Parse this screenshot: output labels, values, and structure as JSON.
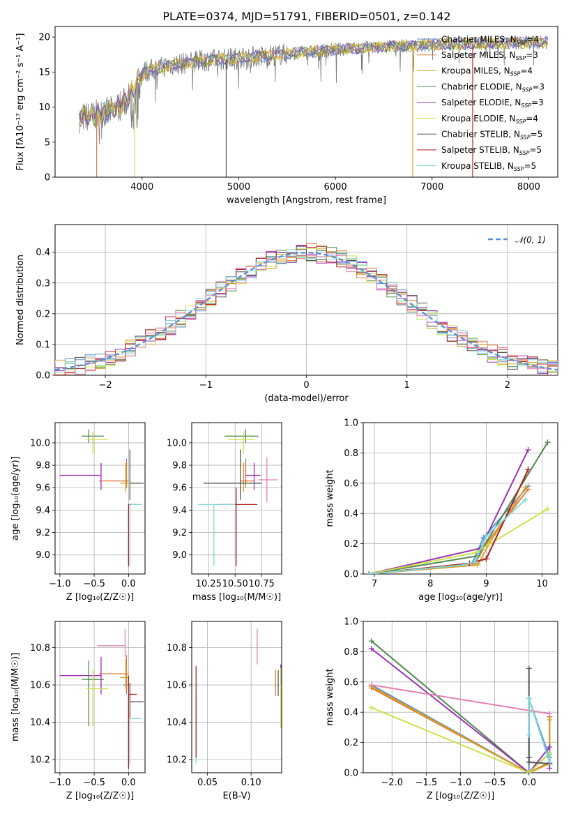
{
  "figure": {
    "title": "PLATE=0374, MJD=51791, FIBERID=0501, z=0.142"
  },
  "colors": {
    "chabrier_miles": "#5b8fd6",
    "salpeter_miles": "#e17b3a",
    "kroupa_miles": "#d6a020",
    "chabrier_elodie": "#4f8a4f",
    "salpeter_elodie": "#9a32b0",
    "kroupa_elodie": "#cbe24a",
    "chabrier_stelib": "#555555",
    "salpeter_stelib": "#b22222",
    "kroupa_stelib": "#7fd8d8",
    "pink": "#e57fb5",
    "grid": "#b0b0b0",
    "gauss": "#5b8fd6"
  },
  "chart_data": [
    {
      "id": "spectrum",
      "type": "line",
      "title": "PLATE=0374, MJD=51791, FIBERID=0501, z=0.142",
      "xlabel": "wavelength [Angstrom, rest frame]",
      "ylabel": "Flux [fλ10⁻¹⁷ erg cm⁻² s⁻¹ A⁻¹]",
      "xlim": [
        3100,
        8300
      ],
      "ylim": [
        0,
        21.5
      ],
      "xticks": [
        4000,
        5000,
        6000,
        7000,
        8000
      ],
      "yticks": [
        0,
        5,
        10,
        15,
        20
      ],
      "grid": false,
      "legend_position": "top-right",
      "legend": [
        "Chabrier MILES, N_SSP=4",
        "Salpeter MILES, N_SSP=3",
        "Kroupa MILES, N_SSP=4",
        "Chabrier ELODIE, N_SSP=3",
        "Salpeter ELODIE, N_SSP=3",
        "Kroupa ELODIE, N_SSP=4",
        "Chabrier STELIB, N_SSP=5",
        "Salpeter STELIB, N_SSP=5",
        "Kroupa STELIB, N_SSP=5"
      ],
      "continuum": [
        [
          3350,
          8.4
        ],
        [
          3500,
          8.8
        ],
        [
          3700,
          9.5
        ],
        [
          3850,
          11.0
        ],
        [
          4000,
          15.0
        ],
        [
          4300,
          16.0
        ],
        [
          4600,
          16.6
        ],
        [
          5000,
          17.0
        ],
        [
          5500,
          17.6
        ],
        [
          6000,
          18.2
        ],
        [
          6500,
          18.6
        ],
        [
          7000,
          18.9
        ],
        [
          7500,
          19.1
        ],
        [
          8000,
          19.2
        ],
        [
          8200,
          19.3
        ]
      ],
      "drop_lines": [
        {
          "x": 3530,
          "color_key": "salpeter_miles"
        },
        {
          "x": 3920,
          "color_key": "kroupa_elodie"
        },
        {
          "x": 4870,
          "color_key": "chabrier_stelib"
        },
        {
          "x": 6800,
          "color_key": "kroupa_miles"
        },
        {
          "x": 7420,
          "color_key": "salpeter_stelib"
        }
      ]
    },
    {
      "id": "residuals",
      "type": "step",
      "xlabel": "(data-model)/error",
      "ylabel": "Normed distribution",
      "xlim": [
        -2.5,
        2.5
      ],
      "ylim": [
        0,
        0.49
      ],
      "xticks": [
        -2,
        -1,
        0,
        1,
        2
      ],
      "yticks": [
        0.0,
        0.1,
        0.2,
        0.3,
        0.4
      ],
      "grid": true,
      "legend": [
        "𝒩(0, 1)"
      ],
      "legend_position": "top-right",
      "bin_width": 0.1
    },
    {
      "id": "age_vs_Z",
      "type": "errorbar",
      "xlabel": "Z [log₁₀(Z/Z☉)]",
      "ylabel": "age  [log₁₀(age/yr)]",
      "xlim": [
        -1.07,
        0.24
      ],
      "ylim": [
        8.83,
        10.18
      ],
      "xticks": [
        -1.0,
        -0.5,
        0.0
      ],
      "yticks": [
        9.0,
        9.2,
        9.4,
        9.6,
        9.8,
        10.0
      ],
      "grid": true,
      "points": [
        {
          "c": "chabrier_miles",
          "x": -0.03,
          "xerr": [
            0.05,
            0.03
          ],
          "y": 9.66,
          "yerr": [
            0.06,
            0.2
          ]
        },
        {
          "c": "salpeter_miles",
          "x": -0.03,
          "xerr": [
            0.4,
            0.03
          ],
          "y": 9.66,
          "yerr": [
            0.06,
            0.18
          ]
        },
        {
          "c": "kroupa_miles",
          "x": -0.04,
          "xerr": [
            0.08,
            0.04
          ],
          "y": 9.64,
          "yerr": [
            0.08,
            0.18
          ]
        },
        {
          "c": "chabrier_elodie",
          "x": -0.58,
          "xerr": [
            0.1,
            0.22
          ],
          "y": 10.06,
          "yerr": [
            0.06,
            0.06
          ]
        },
        {
          "c": "salpeter_elodie",
          "x": -0.4,
          "xerr": [
            0.6,
            0.0
          ],
          "y": 9.71,
          "yerr": [
            0.13,
            0.11
          ]
        },
        {
          "c": "kroupa_elodie",
          "x": -0.52,
          "xerr": [
            0.09,
            0.22
          ],
          "y": 10.03,
          "yerr": [
            0.13,
            0.07
          ]
        },
        {
          "c": "chabrier_stelib",
          "x": 0.02,
          "xerr": [
            0.0,
            0.2
          ],
          "y": 9.64,
          "yerr": [
            0.15,
            0.3
          ]
        },
        {
          "c": "salpeter_stelib",
          "x": 0.0,
          "xerr": [
            0.0,
            0.12
          ],
          "y": 9.45,
          "yerr": [
            0.55,
            0.0
          ]
        },
        {
          "c": "kroupa_stelib",
          "x": 0.02,
          "xerr": [
            0.0,
            0.18
          ],
          "y": 9.45,
          "yerr": [
            0.55,
            0.0
          ]
        }
      ]
    },
    {
      "id": "age_vs_mass",
      "type": "errorbar",
      "xlabel": "mass [log₁₀(M/M☉)]",
      "ylabel": "",
      "xlim": [
        10.09,
        10.94
      ],
      "ylim": [
        8.83,
        10.18
      ],
      "xticks": [
        10.25,
        10.5,
        10.75
      ],
      "yticks": [
        9.0,
        9.2,
        9.4,
        9.6,
        9.8,
        10.0
      ],
      "grid": true,
      "points": [
        {
          "c": "chabrier_miles",
          "x": 10.6,
          "xerr": [
            0.04,
            0.02
          ],
          "y": 9.66,
          "yerr": [
            0.06,
            0.2
          ]
        },
        {
          "c": "salpeter_miles",
          "x": 10.6,
          "xerr": [
            0.05,
            0.08
          ],
          "y": 9.66,
          "yerr": [
            0.06,
            0.18
          ]
        },
        {
          "c": "kroupa_miles",
          "x": 10.58,
          "xerr": [
            0.05,
            0.08
          ],
          "y": 9.64,
          "yerr": [
            0.08,
            0.18
          ]
        },
        {
          "c": "chabrier_elodie",
          "x": 10.6,
          "xerr": [
            0.2,
            0.12
          ],
          "y": 10.06,
          "yerr": [
            0.06,
            0.06
          ]
        },
        {
          "c": "salpeter_elodie",
          "x": 10.68,
          "xerr": [
            0.08,
            0.06
          ],
          "y": 9.71,
          "yerr": [
            0.13,
            0.11
          ]
        },
        {
          "c": "kroupa_elodie",
          "x": 10.58,
          "xerr": [
            0.15,
            0.1
          ],
          "y": 10.03,
          "yerr": [
            0.13,
            0.07
          ]
        },
        {
          "c": "chabrier_stelib",
          "x": 10.55,
          "xerr": [
            0.35,
            0.2
          ],
          "y": 9.64,
          "yerr": [
            0.15,
            0.3
          ]
        },
        {
          "c": "salpeter_stelib",
          "x": 10.51,
          "xerr": [
            0.15,
            0.2
          ],
          "y": 9.45,
          "yerr": [
            0.55,
            0.15
          ]
        },
        {
          "c": "kroupa_stelib",
          "x": 10.3,
          "xerr": [
            0.15,
            0.2
          ],
          "y": 9.45,
          "yerr": [
            0.55,
            0.0
          ]
        },
        {
          "c": "pink",
          "x": 10.8,
          "xerr": [
            0.08,
            0.1
          ],
          "y": 9.67,
          "yerr": [
            0.2,
            0.2
          ]
        }
      ]
    },
    {
      "id": "mass_weight_vs_age",
      "type": "line",
      "xlabel": "age  [log₁₀(age/yr)]",
      "ylabel": "mass weight",
      "xlim": [
        6.8,
        10.28
      ],
      "ylim": [
        0.0,
        1.0
      ],
      "xticks": [
        7,
        8,
        9,
        10
      ],
      "yticks": [
        0.0,
        0.2,
        0.4,
        0.6,
        0.8,
        1.0
      ],
      "grid": true,
      "series": [
        {
          "c": "chabrier_miles",
          "x": [
            6.9,
            8.75,
            8.95,
            9.75
          ],
          "y": [
            0.0,
            0.07,
            0.24,
            0.58
          ]
        },
        {
          "c": "salpeter_miles",
          "x": [
            6.9,
            8.8,
            9.0,
            9.75
          ],
          "y": [
            0.0,
            0.07,
            0.2,
            0.56
          ]
        },
        {
          "c": "kroupa_miles",
          "x": [
            6.9,
            8.85,
            9.05,
            9.7
          ],
          "y": [
            0.0,
            0.06,
            0.2,
            0.57
          ]
        },
        {
          "c": "chabrier_elodie",
          "x": [
            6.9,
            8.85,
            10.1
          ],
          "y": [
            0.0,
            0.12,
            0.87
          ]
        },
        {
          "c": "salpeter_elodie",
          "x": [
            6.9,
            8.9,
            9.75
          ],
          "y": [
            0.0,
            0.17,
            0.82
          ]
        },
        {
          "c": "kroupa_elodie",
          "x": [
            6.9,
            8.8,
            10.1
          ],
          "y": [
            0.0,
            0.14,
            0.43
          ]
        },
        {
          "c": "chabrier_stelib",
          "x": [
            6.9,
            8.7,
            9.0,
            9.75
          ],
          "y": [
            0.0,
            0.07,
            0.1,
            0.69
          ]
        },
        {
          "c": "salpeter_stelib",
          "x": [
            6.9,
            8.7,
            9.0,
            9.75
          ],
          "y": [
            0.0,
            0.07,
            0.1,
            0.69
          ]
        },
        {
          "c": "kroupa_stelib",
          "x": [
            6.9,
            8.6,
            8.8,
            9.0,
            9.7
          ],
          "y": [
            0.0,
            0.06,
            0.08,
            0.25,
            0.49
          ]
        }
      ]
    },
    {
      "id": "mass_vs_Z",
      "type": "errorbar",
      "xlabel": "Z [log₁₀(Z/Z☉)]",
      "ylabel": "mass [log₁₀(M/M☉)]",
      "xlim": [
        -1.07,
        0.24
      ],
      "ylim": [
        10.13,
        10.94
      ],
      "xticks": [
        -1.0,
        -0.5,
        0.0
      ],
      "yticks": [
        10.2,
        10.4,
        10.6,
        10.8
      ],
      "grid": true,
      "points": [
        {
          "c": "chabrier_miles",
          "x": -0.03,
          "xerr": [
            0.05,
            0.03
          ],
          "y": 10.6,
          "yerr": [
            0.05,
            0.1
          ]
        },
        {
          "c": "salpeter_miles",
          "x": -0.03,
          "xerr": [
            0.4,
            0.03
          ],
          "y": 10.66,
          "yerr": [
            0.1,
            0.1
          ]
        },
        {
          "c": "kroupa_miles",
          "x": -0.04,
          "xerr": [
            0.08,
            0.04
          ],
          "y": 10.64,
          "yerr": [
            0.06,
            0.1
          ]
        },
        {
          "c": "chabrier_elodie",
          "x": -0.58,
          "xerr": [
            0.1,
            0.22
          ],
          "y": 10.63,
          "yerr": [
            0.25,
            0.1
          ]
        },
        {
          "c": "salpeter_elodie",
          "x": -0.4,
          "xerr": [
            0.6,
            0.0
          ],
          "y": 10.65,
          "yerr": [
            0.1,
            0.1
          ]
        },
        {
          "c": "kroupa_elodie",
          "x": -0.52,
          "xerr": [
            0.09,
            0.22
          ],
          "y": 10.58,
          "yerr": [
            0.2,
            0.1
          ]
        },
        {
          "c": "chabrier_stelib",
          "x": 0.02,
          "xerr": [
            0.0,
            0.2
          ],
          "y": 10.51,
          "yerr": [
            0.33,
            0.1
          ]
        },
        {
          "c": "salpeter_stelib",
          "x": 0.0,
          "xerr": [
            0.0,
            0.12
          ],
          "y": 10.55,
          "yerr": [
            0.4,
            0.1
          ]
        },
        {
          "c": "kroupa_stelib",
          "x": 0.02,
          "xerr": [
            0.0,
            0.18
          ],
          "y": 10.42,
          "yerr": [
            0.25,
            0.0
          ]
        },
        {
          "c": "pink",
          "x": -0.05,
          "xerr": [
            0.4,
            0.0
          ],
          "y": 10.81,
          "yerr": [
            0.06,
            0.09
          ]
        }
      ]
    },
    {
      "id": "mass_vs_ebv",
      "type": "errorbar",
      "xlabel": "E(B-V)",
      "ylabel": "",
      "xlim": [
        0.032,
        0.135
      ],
      "ylim": [
        10.13,
        10.94
      ],
      "xticks": [
        0.05,
        0.1
      ],
      "yticks": [
        10.2,
        10.4,
        10.6,
        10.8
      ],
      "grid": true,
      "points": [
        {
          "c": "kroupa_stelib",
          "x": 0.037,
          "y": 10.36,
          "yerr": [
            0.18,
            0.18
          ]
        },
        {
          "c": "salpeter_stelib",
          "x": 0.037,
          "y": 10.56,
          "yerr": [
            0.35,
            0.14
          ]
        },
        {
          "c": "pink",
          "x": 0.107,
          "y": 10.81,
          "yerr": [
            0.1,
            0.09
          ]
        },
        {
          "c": "salpeter_miles",
          "x": 0.128,
          "y": 10.6,
          "yerr": [
            0.06,
            0.08
          ]
        },
        {
          "c": "chabrier_stelib",
          "x": 0.131,
          "y": 10.6,
          "yerr": [
            0.06,
            0.08
          ]
        },
        {
          "c": "salpeter_elodie",
          "x": 0.134,
          "y": 10.66,
          "yerr": [
            0.06,
            0.05
          ]
        },
        {
          "c": "kroupa_elodie",
          "x": 0.134,
          "y": 10.55,
          "yerr": [
            0.18,
            0.14
          ]
        }
      ]
    },
    {
      "id": "mass_weight_vs_Z",
      "type": "line",
      "xlabel": "Z [log₁₀(Z/Z☉)]",
      "ylabel": "mass weight",
      "xlim": [
        -2.42,
        0.42
      ],
      "ylim": [
        0.0,
        1.0
      ],
      "xticks": [
        -2.0,
        -1.5,
        -1.0,
        -0.5,
        0.0
      ],
      "yticks": [
        0.0,
        0.2,
        0.4,
        0.6,
        0.8,
        1.0
      ],
      "grid": true,
      "series": [
        {
          "c": "chabrier_miles",
          "x": [
            -2.3,
            0.0,
            0.0,
            0.3,
            0.3
          ],
          "y": [
            0.58,
            0.0,
            0.49,
            0.1,
            0.37
          ]
        },
        {
          "c": "salpeter_miles",
          "x": [
            -2.3,
            0.0,
            0.3,
            0.3
          ],
          "y": [
            0.56,
            0.0,
            0.07,
            0.37
          ]
        },
        {
          "c": "kroupa_miles",
          "x": [
            -2.3,
            0.0,
            0.3,
            0.3
          ],
          "y": [
            0.57,
            0.0,
            0.06,
            0.35
          ]
        },
        {
          "c": "chabrier_elodie",
          "x": [
            -2.3,
            0.0,
            0.3,
            0.3
          ],
          "y": [
            0.87,
            0.0,
            0.13,
            0.06
          ]
        },
        {
          "c": "salpeter_elodie",
          "x": [
            -2.3,
            0.0,
            0.3,
            0.3
          ],
          "y": [
            0.82,
            0.0,
            0.17,
            0.03
          ]
        },
        {
          "c": "kroupa_elodie",
          "x": [
            -2.3,
            0.0,
            0.3,
            0.3
          ],
          "y": [
            0.43,
            0.0,
            0.13,
            0.12
          ]
        },
        {
          "c": "chabrier_stelib",
          "x": [
            0.0,
            0.0,
            0.0,
            0.3,
            0.3
          ],
          "y": [
            0.69,
            0.1,
            0.07,
            0.06,
            0.06
          ]
        },
        {
          "c": "pink",
          "x": [
            -2.3,
            0.3
          ],
          "y": [
            0.58,
            0.39
          ]
        },
        {
          "c": "kroupa_stelib",
          "x": [
            0.0,
            0.0,
            0.3,
            0.3
          ],
          "y": [
            0.25,
            0.49,
            0.07,
            0.12
          ]
        }
      ]
    }
  ]
}
